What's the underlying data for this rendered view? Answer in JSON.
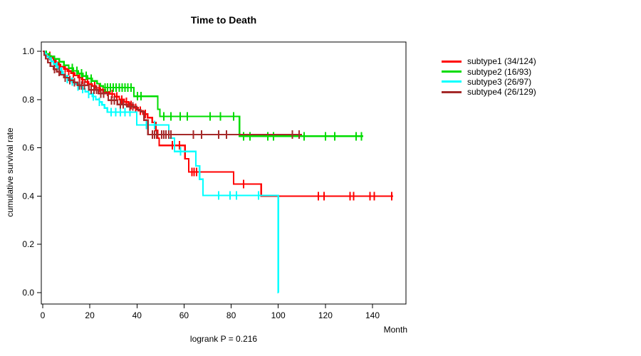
{
  "page": {
    "background": "#ffffff"
  },
  "chart_data": {
    "type": "line",
    "subtype": "kaplan-meier-survival-curves",
    "title": "Time to Death",
    "xlabel": "Month",
    "ylabel": "cumulative survival rate",
    "annotation": "logrank P = 0.216",
    "xlim": [
      0,
      154
    ],
    "ylim": [
      0.0,
      1.0
    ],
    "xticks": [
      0,
      20,
      40,
      60,
      80,
      100,
      120,
      140
    ],
    "xtick_labels": [
      "0",
      "20",
      "40",
      "60",
      "80",
      "100",
      "120",
      "140"
    ],
    "yticks": [
      0.0,
      0.2,
      0.4,
      0.6,
      0.8,
      1.0
    ],
    "ytick_labels": [
      "0.0",
      "0.2",
      "0.4",
      "0.6",
      "0.8",
      "1.0"
    ],
    "grid": false,
    "legend_position": "right-outside",
    "axis_color": "#000000",
    "series": [
      {
        "name": "subtype1",
        "label": "subtype1 (34/124)",
        "color": "#ff0000",
        "events": 34,
        "n": 124,
        "end": 148.7,
        "steps": [
          [
            0,
            1.0
          ],
          [
            1.2,
            0.99
          ],
          [
            2.5,
            0.981
          ],
          [
            3.5,
            0.972
          ],
          [
            4.5,
            0.963
          ],
          [
            5.5,
            0.954
          ],
          [
            6.5,
            0.945
          ],
          [
            7.5,
            0.936
          ],
          [
            9,
            0.927
          ],
          [
            10.5,
            0.918
          ],
          [
            12,
            0.909
          ],
          [
            13.5,
            0.9
          ],
          [
            15,
            0.891
          ],
          [
            16.5,
            0.882
          ],
          [
            18,
            0.873
          ],
          [
            19.5,
            0.864
          ],
          [
            21,
            0.856
          ],
          [
            22.5,
            0.848
          ],
          [
            24.5,
            0.84
          ],
          [
            26.5,
            0.832
          ],
          [
            28.5,
            0.823
          ],
          [
            30.5,
            0.812
          ],
          [
            32.5,
            0.8
          ],
          [
            34.5,
            0.79
          ],
          [
            36.5,
            0.778
          ],
          [
            38.5,
            0.766
          ],
          [
            40.5,
            0.754
          ],
          [
            42.5,
            0.74
          ],
          [
            44.5,
            0.725
          ],
          [
            46.5,
            0.705
          ],
          [
            48,
            0.672
          ],
          [
            48.8,
            0.64
          ],
          [
            49.4,
            0.61
          ],
          [
            60.4,
            0.555
          ],
          [
            62,
            0.5
          ],
          [
            81,
            0.45
          ],
          [
            92.7,
            0.4
          ]
        ],
        "censors": [
          3,
          5,
          7,
          9.5,
          11,
          13,
          15.5,
          17,
          19,
          20.5,
          22,
          24,
          25.5,
          27.5,
          29.5,
          31.5,
          33.5,
          35.5,
          37.5,
          39.5,
          41.5,
          43.5,
          55,
          58,
          63.3,
          64.3,
          65.3,
          85.3,
          117,
          119.5,
          130.5,
          132,
          139,
          140.7,
          148.2
        ]
      },
      {
        "name": "subtype2",
        "label": "subtype2 (16/93)",
        "color": "#00dc00",
        "events": 16,
        "n": 93,
        "end": 136,
        "steps": [
          [
            0,
            1.0
          ],
          [
            1.5,
            0.989
          ],
          [
            3,
            0.979
          ],
          [
            5,
            0.968
          ],
          [
            7,
            0.957
          ],
          [
            9,
            0.942
          ],
          [
            11,
            0.93
          ],
          [
            13,
            0.919
          ],
          [
            15,
            0.908
          ],
          [
            17,
            0.898
          ],
          [
            19,
            0.887
          ],
          [
            21,
            0.877
          ],
          [
            23,
            0.866
          ],
          [
            24.5,
            0.856
          ],
          [
            25.7,
            0.85
          ],
          [
            38.7,
            0.814
          ],
          [
            48.8,
            0.76
          ],
          [
            49.7,
            0.73
          ],
          [
            83.5,
            0.648
          ]
        ],
        "censors": [
          12.5,
          14.5,
          16.5,
          18.5,
          20.5,
          26.5,
          27.5,
          28.7,
          30,
          31.2,
          32.5,
          33.7,
          35,
          36.2,
          37.5,
          40.2,
          41.8,
          51.4,
          54.4,
          58.3,
          61.4,
          71,
          75.5,
          81,
          85.2,
          88,
          95.5,
          98,
          111,
          120,
          124,
          133,
          135.3
        ]
      },
      {
        "name": "subtype3",
        "label": "subtype3 (26/97)",
        "color": "#00ffff",
        "events": 26,
        "n": 97,
        "end": 100.1,
        "steps": [
          [
            0,
            1.0
          ],
          [
            0.8,
            0.99
          ],
          [
            1.6,
            0.979
          ],
          [
            2.5,
            0.969
          ],
          [
            3.5,
            0.958
          ],
          [
            4.5,
            0.948
          ],
          [
            5.5,
            0.938
          ],
          [
            6.5,
            0.927
          ],
          [
            7.5,
            0.917
          ],
          [
            8.5,
            0.906
          ],
          [
            9.5,
            0.896
          ],
          [
            10.5,
            0.885
          ],
          [
            12,
            0.875
          ],
          [
            13.5,
            0.864
          ],
          [
            15,
            0.854
          ],
          [
            16.5,
            0.844
          ],
          [
            18,
            0.833
          ],
          [
            19.5,
            0.823
          ],
          [
            21,
            0.813
          ],
          [
            22.5,
            0.8
          ],
          [
            24,
            0.79
          ],
          [
            25.2,
            0.778
          ],
          [
            26.2,
            0.765
          ],
          [
            27.4,
            0.748
          ],
          [
            39.9,
            0.695
          ],
          [
            53.5,
            0.64
          ],
          [
            55.9,
            0.585
          ],
          [
            65,
            0.525
          ],
          [
            66.6,
            0.47
          ],
          [
            68,
            0.403
          ],
          [
            100,
            0.0
          ]
        ],
        "censors": [
          3.5,
          6,
          8,
          10.5,
          12.5,
          15,
          17,
          19.5,
          21.5,
          24,
          29,
          31,
          33,
          35,
          37,
          44,
          47.4,
          58.5,
          74.7,
          79.5,
          82.2,
          91.6
        ]
      },
      {
        "name": "subtype4",
        "label": "subtype4 (26/129)",
        "color": "#a52a2a",
        "events": 26,
        "n": 129,
        "end": 110,
        "steps": [
          [
            0,
            1.0
          ],
          [
            0.6,
            0.984
          ],
          [
            1.3,
            0.969
          ],
          [
            2.2,
            0.953
          ],
          [
            3.2,
            0.938
          ],
          [
            4.5,
            0.926
          ],
          [
            6,
            0.915
          ],
          [
            7.5,
            0.903
          ],
          [
            9,
            0.891
          ],
          [
            11,
            0.88
          ],
          [
            13,
            0.871
          ],
          [
            14.7,
            0.859
          ],
          [
            19.6,
            0.84
          ],
          [
            23.6,
            0.825
          ],
          [
            27.8,
            0.797
          ],
          [
            31.7,
            0.78
          ],
          [
            35.7,
            0.771
          ],
          [
            39.9,
            0.758
          ],
          [
            41.5,
            0.75
          ],
          [
            43,
            0.715
          ],
          [
            44.7,
            0.655
          ]
        ],
        "censors": [
          5,
          7,
          9.5,
          11.5,
          13.5,
          15.5,
          16.5,
          17.7,
          20.5,
          21.7,
          22.8,
          24.7,
          25.8,
          29.2,
          30.4,
          33,
          34.2,
          37,
          38.2,
          46.6,
          47.5,
          48.4,
          50.5,
          51.4,
          52.3,
          53.5,
          54.4,
          64,
          67.5,
          74.7,
          78,
          106,
          108.8
        ]
      }
    ]
  }
}
